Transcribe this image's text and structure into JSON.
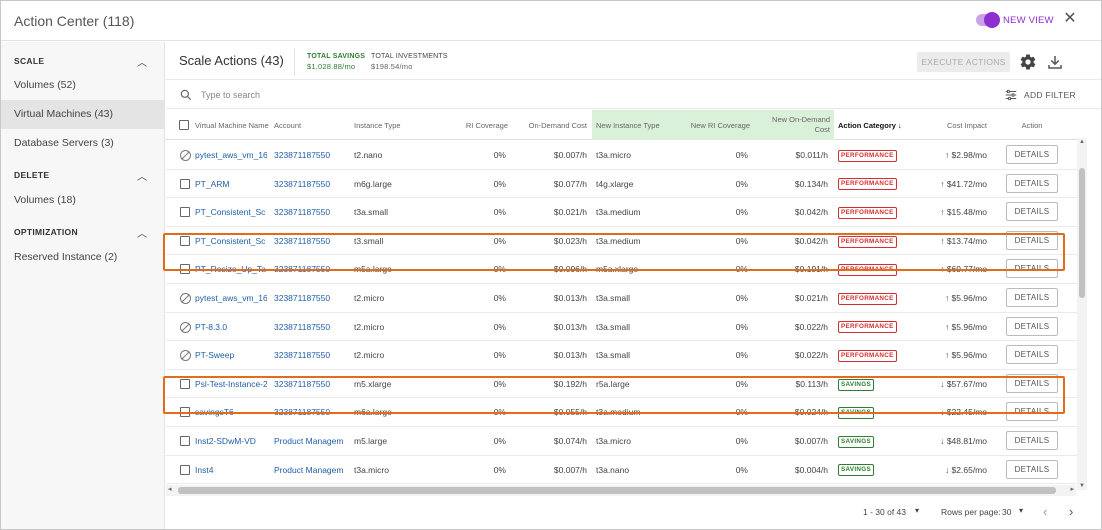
{
  "app": {
    "title": "Action Center (118)",
    "new_view": "NEW VIEW"
  },
  "sidebar": {
    "sections": [
      {
        "title": "SCALE",
        "items": [
          {
            "label": "Volumes (52)"
          },
          {
            "label": "Virtual Machines (43)"
          },
          {
            "label": "Database Servers (3)"
          }
        ]
      },
      {
        "title": "DELETE",
        "items": [
          {
            "label": "Volumes (18)"
          }
        ]
      },
      {
        "title": "OPTIMIZATION",
        "items": [
          {
            "label": "Reserved Instance (2)"
          }
        ]
      }
    ]
  },
  "header": {
    "title": "Scale Actions (43)",
    "total_savings_label": "TOTAL SAVINGS",
    "total_savings_value": "$1,028.88/mo",
    "total_investments_label": "TOTAL INVESTMENTS",
    "total_investments_value": "$198.54/mo",
    "execute_label": "EXECUTE ACTIONS"
  },
  "search": {
    "placeholder": "Type to search",
    "add_filter": "ADD FILTER"
  },
  "columns": [
    "Virtual Machine Name",
    "Account",
    "Instance Type",
    "RI Coverage",
    "On-Demand Cost",
    "New Instance Type",
    "New RI Coverage",
    "New On-Demand Cost",
    "Action Category",
    "Cost Impact",
    "Action"
  ],
  "sort_indicator": "↓",
  "rows": [
    {
      "name": "pytest_aws_vm_16",
      "account": "323871187550",
      "instance": "t2.nano",
      "ri": "0%",
      "cost": "$0.007/h",
      "new_instance": "t3a.micro",
      "new_ri": "0%",
      "new_cost": "$0.011/h",
      "category": "PERFORMANCE",
      "impact": "↑ $2.98/mo",
      "action": "DETAILS",
      "disabled": true
    },
    {
      "name": "PT_ARM",
      "account": "323871187550",
      "instance": "m6g.large",
      "ri": "0%",
      "cost": "$0.077/h",
      "new_instance": "t4g.xlarge",
      "new_ri": "0%",
      "new_cost": "$0.134/h",
      "category": "PERFORMANCE",
      "impact": "↑ $41.72/mo",
      "action": "DETAILS",
      "disabled": false
    },
    {
      "name": "PT_Consistent_Sc",
      "account": "323871187550",
      "instance": "t3a.small",
      "ri": "0%",
      "cost": "$0.021/h",
      "new_instance": "t3a.medium",
      "new_ri": "0%",
      "new_cost": "$0.042/h",
      "category": "PERFORMANCE",
      "impact": "↑ $15.48/mo",
      "action": "DETAILS",
      "disabled": false
    },
    {
      "name": "PT_Consistent_Sc",
      "account": "323871187550",
      "instance": "t3.small",
      "ri": "0%",
      "cost": "$0.023/h",
      "new_instance": "t3a.medium",
      "new_ri": "0%",
      "new_cost": "$0.042/h",
      "category": "PERFORMANCE",
      "impact": "↑ $13.74/mo",
      "action": "DETAILS",
      "disabled": false
    },
    {
      "name": "PT_Resize_Up_Ta",
      "account": "323871187550",
      "instance": "m5a.large",
      "ri": "0%",
      "cost": "$0.096/h",
      "new_instance": "m5a.xlarge",
      "new_ri": "0%",
      "new_cost": "$0.191/h",
      "category": "PERFORMANCE",
      "impact": "↑ $69.77/mo",
      "action": "DETAILS",
      "disabled": false
    },
    {
      "name": "pytest_aws_vm_16",
      "account": "323871187550",
      "instance": "t2.micro",
      "ri": "0%",
      "cost": "$0.013/h",
      "new_instance": "t3a.small",
      "new_ri": "0%",
      "new_cost": "$0.021/h",
      "category": "PERFORMANCE",
      "impact": "↑ $5.96/mo",
      "action": "DETAILS",
      "disabled": true
    },
    {
      "name": "PT-8.3.0",
      "account": "323871187550",
      "instance": "t2.micro",
      "ri": "0%",
      "cost": "$0.013/h",
      "new_instance": "t3a.small",
      "new_ri": "0%",
      "new_cost": "$0.022/h",
      "category": "PERFORMANCE",
      "impact": "↑ $5.96/mo",
      "action": "DETAILS",
      "disabled": true
    },
    {
      "name": "PT-Sweep",
      "account": "323871187550",
      "instance": "t2.micro",
      "ri": "0%",
      "cost": "$0.013/h",
      "new_instance": "t3a.small",
      "new_ri": "0%",
      "new_cost": "$0.022/h",
      "category": "PERFORMANCE",
      "impact": "↑ $5.96/mo",
      "action": "DETAILS",
      "disabled": true
    },
    {
      "name": "Psl-Test-Instance-2",
      "account": "323871187550",
      "instance": "m5.xlarge",
      "ri": "0%",
      "cost": "$0.192/h",
      "new_instance": "r5a.large",
      "new_ri": "0%",
      "new_cost": "$0.113/h",
      "category": "SAVINGS",
      "impact": "↓ $57.67/mo",
      "action": "DETAILS",
      "disabled": false
    },
    {
      "name": "savingsT6",
      "account": "323871187550",
      "instance": "m6a.large",
      "ri": "0%",
      "cost": "$0.055/h",
      "new_instance": "t3a.medium",
      "new_ri": "0%",
      "new_cost": "$0.024/h",
      "category": "SAVINGS",
      "impact": "↓ $22.45/mo",
      "action": "DETAILS",
      "disabled": false
    },
    {
      "name": "Inst2-SDwM-VD",
      "account": "Product Managem",
      "instance": "m5.large",
      "ri": "0%",
      "cost": "$0.074/h",
      "new_instance": "t3a.micro",
      "new_ri": "0%",
      "new_cost": "$0.007/h",
      "category": "SAVINGS",
      "impact": "↓ $48.81/mo",
      "action": "DETAILS",
      "disabled": false
    },
    {
      "name": "Inst4",
      "account": "Product Managem",
      "instance": "t3a.micro",
      "ri": "0%",
      "cost": "$0.007/h",
      "new_instance": "t3a.nano",
      "new_ri": "0%",
      "new_cost": "$0.004/h",
      "category": "SAVINGS",
      "impact": "↓ $2.65/mo",
      "action": "DETAILS",
      "disabled": false
    }
  ],
  "footer": {
    "range": "1 - 30 of 43",
    "rows_per_page_label": "Rows per page:",
    "rows_per_page": "30"
  },
  "colors": {
    "accent": "#8e2fd0",
    "savings": "#2e7d32",
    "performance": "#d32f2f",
    "highlight": "#e36c1c",
    "link": "#1f5fa8",
    "header_green": "#d9f0d9"
  }
}
